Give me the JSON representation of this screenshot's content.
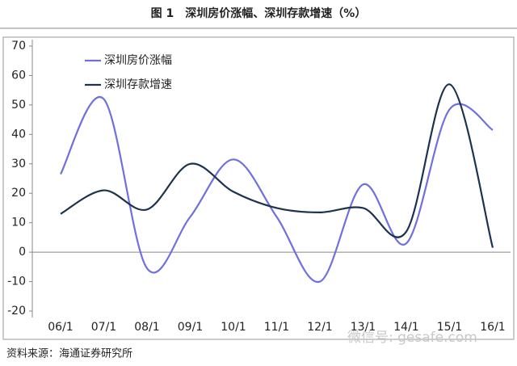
{
  "chart_data": {
    "type": "line",
    "title": "图 1　深圳房价涨幅、深圳存款增速（%）",
    "source": "资料来源：海通证券研究所",
    "watermark": "微信号: gesafe.com",
    "categories": [
      "06/1",
      "07/1",
      "08/1",
      "09/1",
      "10/1",
      "11/1",
      "12/1",
      "13/1",
      "14/1",
      "15/1",
      "16/1"
    ],
    "series": [
      {
        "name": "深圳房价涨幅",
        "color": "#6f6fe0",
        "values": [
          26.5,
          52,
          -5.5,
          12,
          31.5,
          12,
          -10,
          23,
          3,
          48.5,
          41.5
        ]
      },
      {
        "name": "深圳存款增速",
        "color": "#1c3350",
        "values": [
          13,
          21,
          14.5,
          30,
          20.5,
          15,
          13.5,
          15,
          7,
          57,
          1.5
        ]
      }
    ],
    "ylim": [
      -20,
      70
    ],
    "yticks": [
      -20,
      -10,
      0,
      10,
      20,
      30,
      40,
      50,
      60,
      70
    ],
    "smooth": true,
    "legend": "top-left"
  }
}
